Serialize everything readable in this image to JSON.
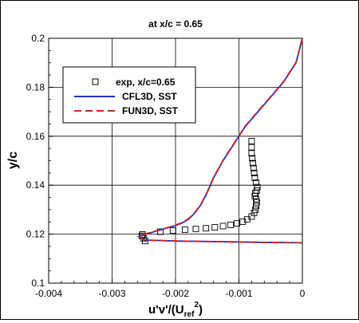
{
  "chart_data": {
    "type": "line",
    "title": "at x/c = 0.65",
    "xlabel_main": "u'v'/(U",
    "xlabel_sub": "ref",
    "xlabel_sup": "2",
    "xlabel_close": ")",
    "ylabel": "y/c",
    "xlim": [
      -0.004,
      0
    ],
    "ylim": [
      0.1,
      0.2
    ],
    "xticks": [
      -0.004,
      -0.003,
      -0.002,
      -0.001,
      0
    ],
    "xtick_labels": [
      "-0.004",
      "-0.003",
      "-0.002",
      "-0.001",
      "0"
    ],
    "yticks": [
      0.1,
      0.12,
      0.14,
      0.16,
      0.18,
      0.2
    ],
    "ytick_labels": [
      "0.1",
      "0.12",
      "0.14",
      "0.16",
      "0.18",
      "0.2"
    ],
    "grid": true,
    "legend_position": "upper-left",
    "series": [
      {
        "name": "exp, x/c=0.65",
        "style": "markers",
        "marker": "square",
        "color": "#000000",
        "x": [
          -0.00253,
          -0.0025,
          -0.00248,
          -0.00252,
          -0.00224,
          -0.00204,
          -0.00185,
          -0.00168,
          -0.00152,
          -0.00138,
          -0.00125,
          -0.00113,
          -0.00103,
          -0.00094,
          -0.00087,
          -0.0008,
          -0.00076,
          -0.00074,
          -0.00073,
          -0.00072,
          -0.00073,
          -0.00075,
          -0.00074,
          -0.00072,
          -0.00071,
          -0.00073,
          -0.00075,
          -0.00076,
          -0.00077,
          -0.00078,
          -0.00079,
          -0.0008,
          -0.0008,
          -0.0008
        ],
        "y": [
          0.1193,
          0.1183,
          0.1172,
          0.1199,
          0.121,
          0.1215,
          0.1218,
          0.1221,
          0.1224,
          0.1228,
          0.1233,
          0.1238,
          0.1244,
          0.1251,
          0.126,
          0.1272,
          0.1287,
          0.13,
          0.1315,
          0.133,
          0.1343,
          0.1356,
          0.1368,
          0.1378,
          0.1392,
          0.141,
          0.143,
          0.145,
          0.147,
          0.149,
          0.151,
          0.153,
          0.1555,
          0.158
        ]
      },
      {
        "name": "CFL3D, SST",
        "style": "solid",
        "color": "#1f2fc8",
        "x": [
          0.0,
          -0.0001,
          -0.0003,
          -0.0005,
          -0.0007,
          -0.0009,
          -0.001,
          -0.0011,
          -0.00125,
          -0.0014,
          -0.0015,
          -0.0016,
          -0.0017,
          -0.0018,
          -0.0019,
          -0.002,
          -0.0021,
          -0.0022,
          -0.0023,
          -0.0024,
          -0.0025,
          -0.00258,
          -0.0025,
          -0.002,
          -0.0015,
          -0.001,
          -0.0005,
          0.0
        ],
        "y": [
          0.2,
          0.19,
          0.182,
          0.176,
          0.17,
          0.164,
          0.16,
          0.156,
          0.15,
          0.143,
          0.137,
          0.132,
          0.1285,
          0.126,
          0.1245,
          0.1235,
          0.1228,
          0.122,
          0.1213,
          0.1205,
          0.1198,
          0.119,
          0.1176,
          0.1172,
          0.117,
          0.1168,
          0.1166,
          0.1165
        ]
      },
      {
        "name": "FUN3D, SST",
        "style": "dashed",
        "color": "#d62020",
        "x": [
          0.0,
          -0.0001,
          -0.0003,
          -0.0005,
          -0.0007,
          -0.0009,
          -0.001,
          -0.0011,
          -0.00125,
          -0.0014,
          -0.0015,
          -0.0016,
          -0.0017,
          -0.0018,
          -0.0019,
          -0.002,
          -0.0021,
          -0.0022,
          -0.0023,
          -0.0024,
          -0.0025,
          -0.00257,
          -0.0025,
          -0.002,
          -0.0015,
          -0.001,
          -0.0005,
          0.0
        ],
        "y": [
          0.2,
          0.1902,
          0.1822,
          0.1762,
          0.1702,
          0.1642,
          0.1602,
          0.1562,
          0.1502,
          0.1432,
          0.1372,
          0.1322,
          0.1287,
          0.1262,
          0.1247,
          0.1237,
          0.1229,
          0.1221,
          0.1214,
          0.1206,
          0.1199,
          0.1191,
          0.1176,
          0.1172,
          0.117,
          0.1168,
          0.1166,
          0.1165
        ]
      }
    ]
  }
}
